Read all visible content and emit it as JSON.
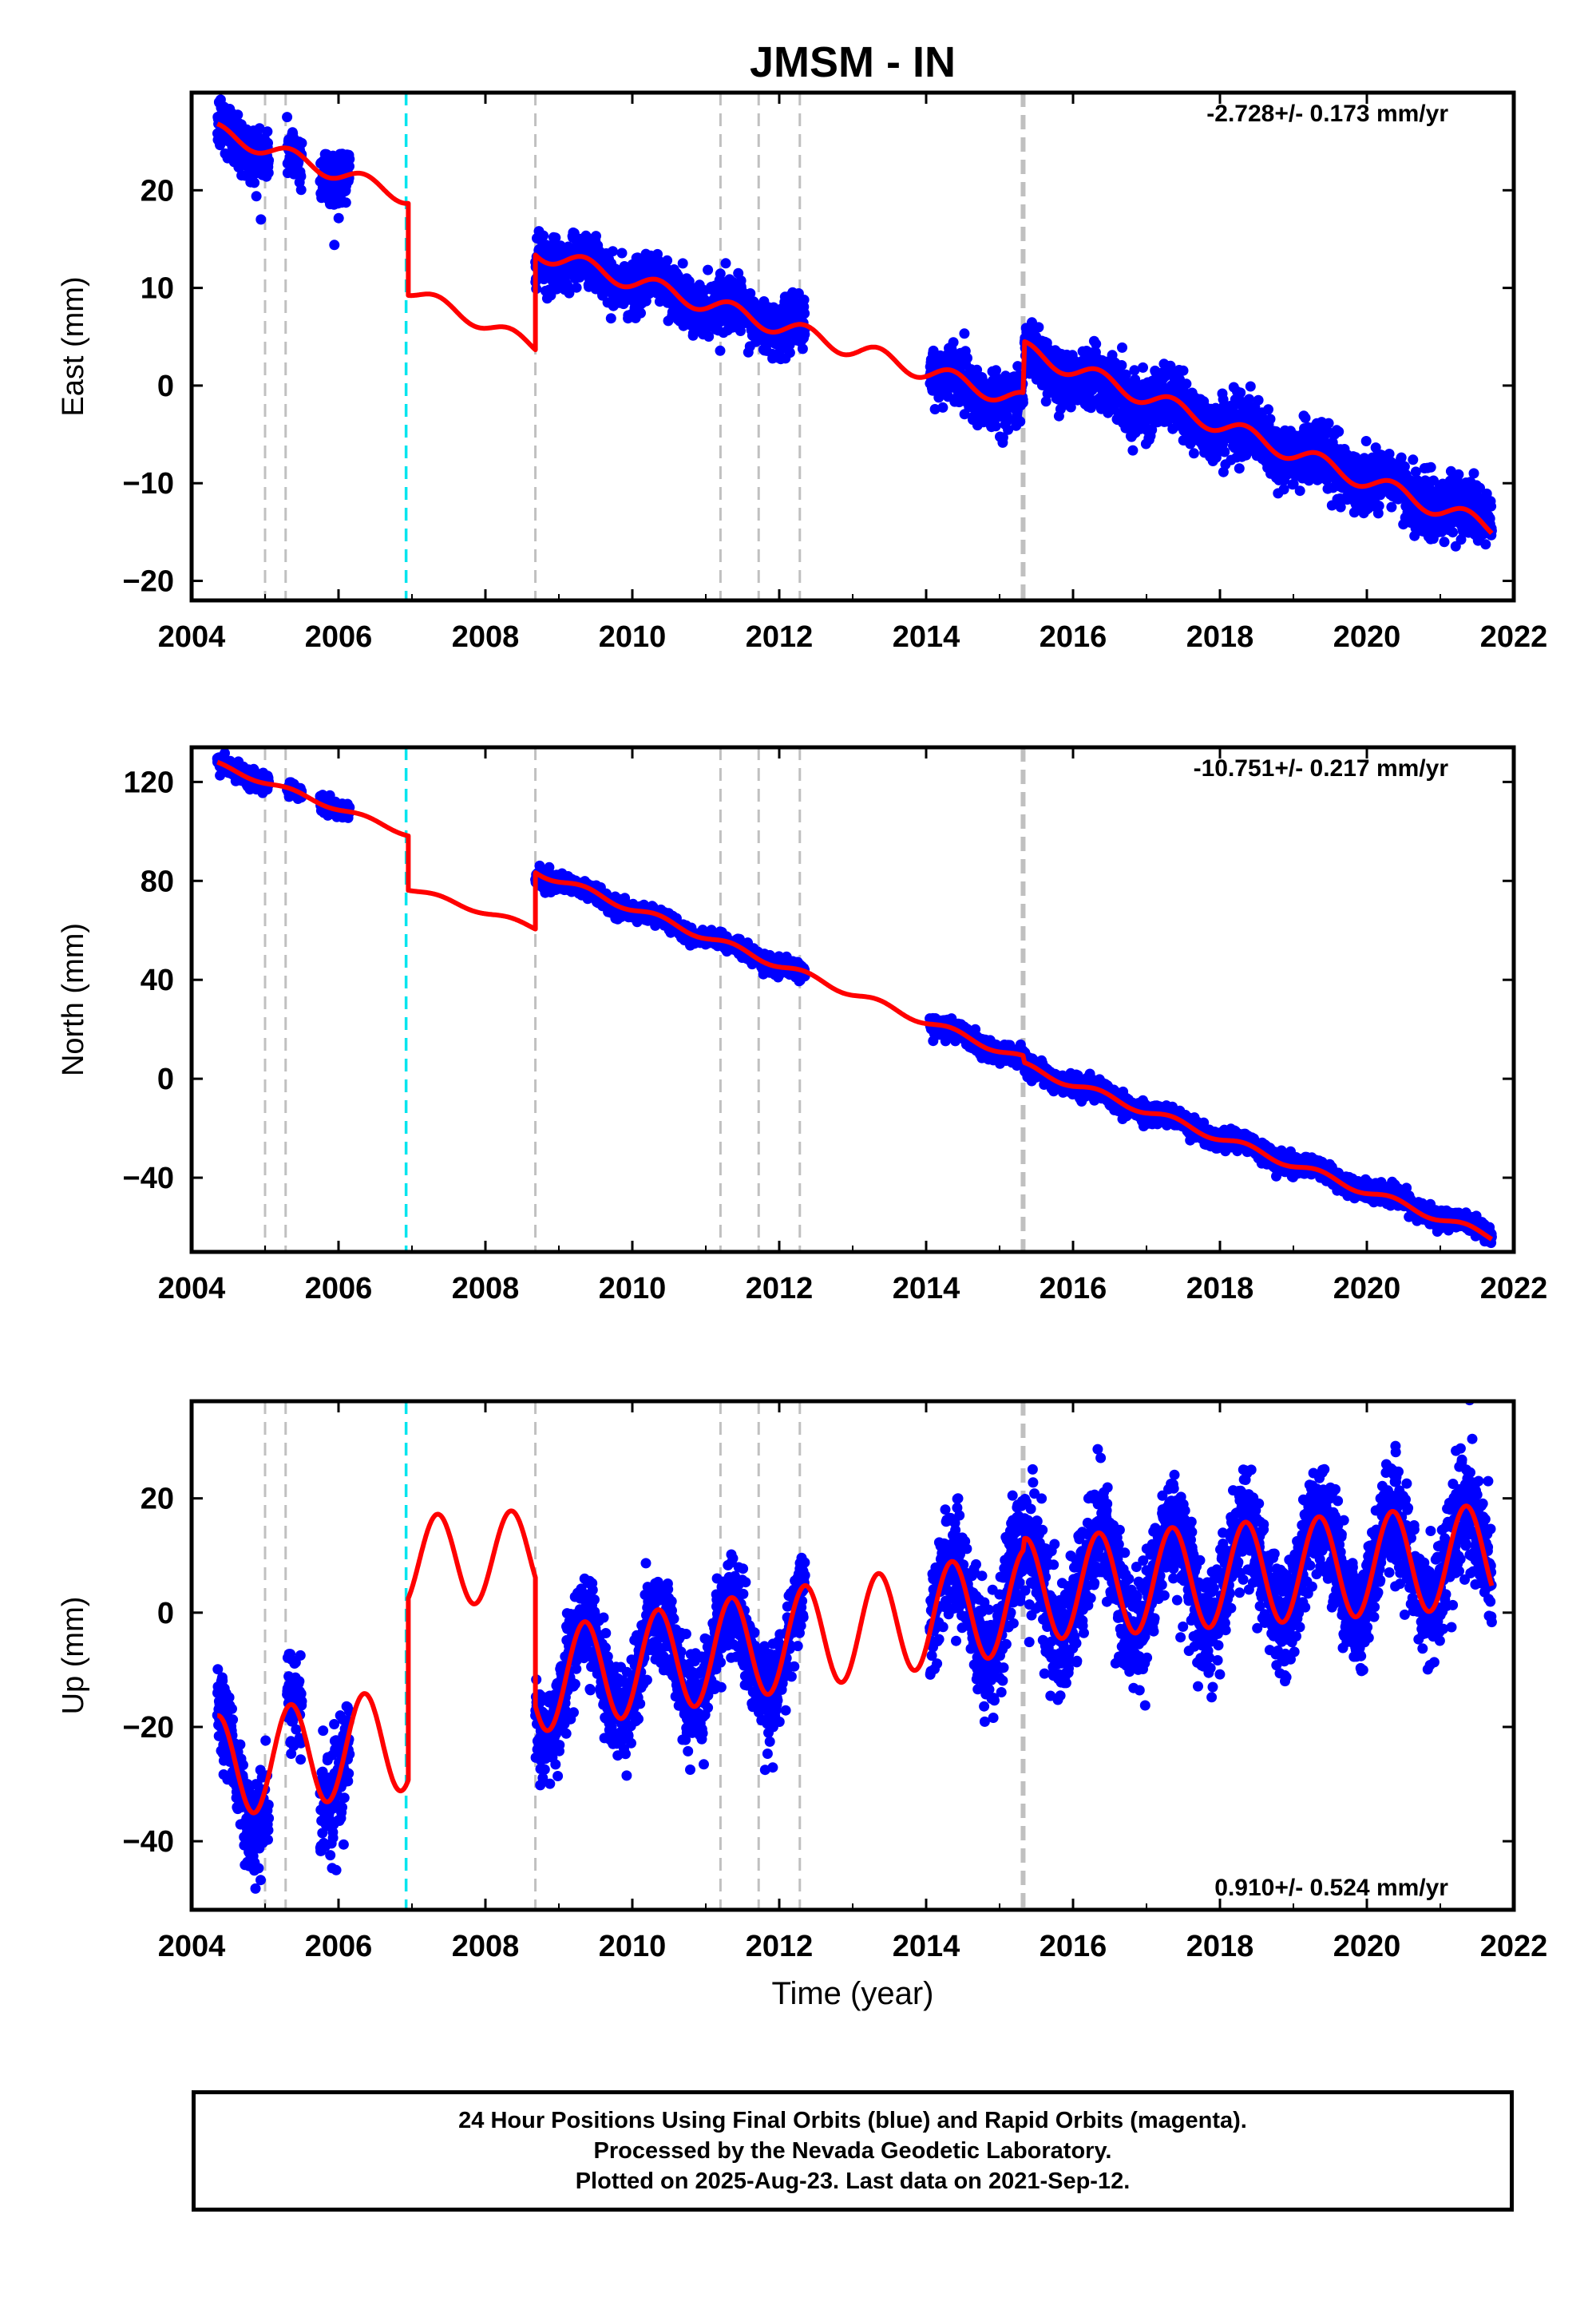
{
  "title": "JMSM - IN",
  "colors": {
    "data_points": "#0000ff",
    "model_line": "#ff0000",
    "break_line": "#c0c0c0",
    "break_line_major": "#c0c0c0",
    "equipment_line": "#00e5ee",
    "axes": "#000000"
  },
  "chart_data": [
    {
      "type": "scatter",
      "panel": "east",
      "ylabel": "East (mm)",
      "xlabel": "",
      "xlim": [
        2004,
        2022
      ],
      "ylim": [
        -22,
        30
      ],
      "xticks": [
        2004,
        2006,
        2008,
        2010,
        2012,
        2014,
        2016,
        2018,
        2020,
        2022
      ],
      "yticks": [
        -20,
        -10,
        0,
        10,
        20
      ],
      "ytick_labels": [
        "−20",
        "−10",
        "0",
        "10",
        "20"
      ],
      "grid": false,
      "rate_label": "-2.728+/- 0.173 mm/yr",
      "rate_label_position": "top-right",
      "series": [
        {
          "kind": "observations",
          "color": "#0000ff",
          "segments": [
            {
              "x_range": [
                2004.35,
                2005.05
              ],
              "trend_start": 26,
              "trend_end": 24,
              "amplitude": 1.0,
              "scatter": 1.6
            },
            {
              "x_range": [
                2005.3,
                2005.5
              ],
              "trend_start": 23.5,
              "trend_end": 22.5,
              "amplitude": 0.8,
              "scatter": 1.4
            },
            {
              "x_range": [
                2005.75,
                2006.15
              ],
              "trend_start": 22.5,
              "trend_end": 21.0,
              "amplitude": 0.8,
              "scatter": 1.6
            },
            {
              "x_range": [
                2008.68,
                2012.35
              ],
              "trend_start": 13.5,
              "trend_end": 5.5,
              "amplitude": 1.0,
              "scatter": 1.3
            },
            {
              "x_range": [
                2014.05,
                2015.32
              ],
              "trend_start": 1.2,
              "trend_end": -1.8,
              "amplitude": 0.9,
              "scatter": 1.4
            },
            {
              "x_range": [
                2015.34,
                2021.7
              ],
              "trend_start": 3.0,
              "trend_end": -14.0,
              "amplitude": 0.9,
              "scatter": 1.5
            }
          ]
        },
        {
          "kind": "model",
          "color": "#ff0000",
          "segments": [
            {
              "x_range": [
                2004.35,
                2006.95
              ],
              "trend_start": 26.0,
              "trend_end": 19.3,
              "amplitude": 0.8
            },
            {
              "x_range": [
                2006.95,
                2008.68
              ],
              "trend_start": 9.8,
              "trend_end": 4.0,
              "amplitude": 0.7
            },
            {
              "x_range": [
                2008.68,
                2015.32
              ],
              "trend_start": 13.8,
              "trend_end": -1.6,
              "amplitude": 0.9
            },
            {
              "x_range": [
                2015.34,
                2021.7
              ],
              "trend_start": 3.6,
              "trend_end": -14.6,
              "amplitude": 0.9
            }
          ]
        }
      ]
    },
    {
      "type": "scatter",
      "panel": "north",
      "ylabel": "North (mm)",
      "xlabel": "",
      "xlim": [
        2004,
        2022
      ],
      "ylim": [
        -70,
        134
      ],
      "xticks": [
        2004,
        2006,
        2008,
        2010,
        2012,
        2014,
        2016,
        2018,
        2020,
        2022
      ],
      "yticks": [
        -40,
        0,
        40,
        80,
        120
      ],
      "ytick_labels": [
        "−40",
        "0",
        "40",
        "80",
        "120"
      ],
      "grid": false,
      "rate_label": "-10.751+/- 0.217 mm/yr",
      "rate_label_position": "top-right",
      "series": [
        {
          "kind": "observations",
          "color": "#0000ff",
          "segments": [
            {
              "x_range": [
                2004.35,
                2005.05
              ],
              "trend_start": 127,
              "trend_end": 120,
              "amplitude": 0.8,
              "scatter": 1.8
            },
            {
              "x_range": [
                2005.3,
                2005.5
              ],
              "trend_start": 117,
              "trend_end": 115,
              "amplitude": 0.8,
              "scatter": 1.5
            },
            {
              "x_range": [
                2005.75,
                2006.15
              ],
              "trend_start": 112,
              "trend_end": 108,
              "amplitude": 0.8,
              "scatter": 1.8
            },
            {
              "x_range": [
                2008.68,
                2012.35
              ],
              "trend_start": 83,
              "trend_end": 42,
              "amplitude": 1.2,
              "scatter": 1.6
            },
            {
              "x_range": [
                2014.05,
                2015.32
              ],
              "trend_start": 22,
              "trend_end": 8,
              "amplitude": 1.2,
              "scatter": 1.8
            },
            {
              "x_range": [
                2015.34,
                2021.7
              ],
              "trend_start": 5,
              "trend_end": -63,
              "amplitude": 1.5,
              "scatter": 1.8
            }
          ]
        },
        {
          "kind": "model",
          "color": "#ff0000",
          "segments": [
            {
              "x_range": [
                2004.35,
                2006.95
              ],
              "trend_start": 127,
              "trend_end": 99,
              "amplitude": 1.0
            },
            {
              "x_range": [
                2006.95,
                2008.68
              ],
              "trend_start": 77,
              "trend_end": 61,
              "amplitude": 1.0
            },
            {
              "x_range": [
                2008.68,
                2015.32
              ],
              "trend_start": 84,
              "trend_end": 8,
              "amplitude": 1.4
            },
            {
              "x_range": [
                2015.34,
                2021.7
              ],
              "trend_start": 5,
              "trend_end": -64,
              "amplitude": 1.5
            }
          ]
        }
      ]
    },
    {
      "type": "scatter",
      "panel": "up",
      "ylabel": "Up (mm)",
      "xlabel": "Time (year)",
      "xlim": [
        2004,
        2022
      ],
      "ylim": [
        -52,
        37
      ],
      "xticks": [
        2004,
        2006,
        2008,
        2010,
        2012,
        2014,
        2016,
        2018,
        2020,
        2022
      ],
      "yticks": [
        -40,
        -20,
        0,
        20
      ],
      "ytick_labels": [
        "−40",
        "−20",
        "0",
        "20"
      ],
      "grid": false,
      "rate_label": "0.910+/- 0.524 mm/yr",
      "rate_label_position": "bottom-right",
      "series": [
        {
          "kind": "observations",
          "color": "#0000ff",
          "segments": [
            {
              "x_range": [
                2004.35,
                2005.05
              ],
              "trend_start": -25,
              "trend_end": -30,
              "amplitude": 9,
              "scatter": 4.0
            },
            {
              "x_range": [
                2005.3,
                2005.5
              ],
              "trend_start": -20,
              "trend_end": -22,
              "amplitude": 6,
              "scatter": 4.0
            },
            {
              "x_range": [
                2005.75,
                2006.15
              ],
              "trend_start": -28,
              "trend_end": -24,
              "amplitude": 6,
              "scatter": 5.0
            },
            {
              "x_range": [
                2008.68,
                2012.35
              ],
              "trend_start": -12,
              "trend_end": -5,
              "amplitude": 9,
              "scatter": 4.0
            },
            {
              "x_range": [
                2014.05,
                2015.32
              ],
              "trend_start": 0,
              "trend_end": 3,
              "amplitude": 9,
              "scatter": 5.0
            },
            {
              "x_range": [
                2015.34,
                2021.7
              ],
              "trend_start": 4,
              "trend_end": 10,
              "amplitude": 9,
              "scatter": 5.0
            }
          ]
        },
        {
          "kind": "model",
          "color": "#ff0000",
          "segments": [
            {
              "x_range": [
                2004.35,
                2006.95
              ],
              "trend_start": -27,
              "trend_end": -22,
              "amplitude": 9
            },
            {
              "x_range": [
                2006.95,
                2008.68
              ],
              "trend_start": 9,
              "trend_end": 10,
              "amplitude": 8
            },
            {
              "x_range": [
                2008.68,
                2015.32
              ],
              "trend_start": -12,
              "trend_end": 2,
              "amplitude": 9
            },
            {
              "x_range": [
                2015.34,
                2021.7
              ],
              "trend_start": 4,
              "trend_end": 10,
              "amplitude": 9
            }
          ]
        }
      ]
    }
  ],
  "breaks": {
    "dashed_gray": [
      2005.0,
      2005.28,
      2008.68,
      2011.2,
      2011.72,
      2012.28
    ],
    "dashed_gray_major": [
      2015.32
    ],
    "dashed_cyan": [
      2006.92
    ]
  },
  "footer": {
    "line1": "24 Hour Positions Using Final Orbits (blue) and Rapid Orbits (magenta).",
    "line2": "Processed by the Nevada Geodetic Laboratory.",
    "line3": "Plotted on 2025-Aug-23. Last data on 2021-Sep-12."
  }
}
